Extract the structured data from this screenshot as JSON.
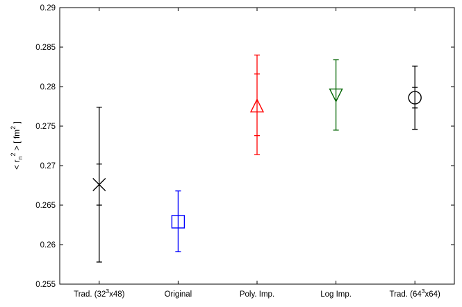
{
  "chart_data": {
    "type": "scatter",
    "title": "",
    "xlabel": "",
    "ylabel": "< r_n^2 >  [ fm^2 ]",
    "ylabel_parts": {
      "open": "< r",
      "sub": "n",
      "sup1": "2",
      "close": " >   [ fm",
      "sup2": "2",
      "end": " ]"
    },
    "ylim": [
      0.255,
      0.29
    ],
    "yticks": [
      "0.255",
      "0.26",
      "0.265",
      "0.27",
      "0.275",
      "0.28",
      "0.285",
      "0.29"
    ],
    "categories": [
      {
        "label": "Trad. (32",
        "sup": "3",
        "tail": "x48)"
      },
      {
        "label": "Original",
        "sup": "",
        "tail": ""
      },
      {
        "label": "Poly. Imp.",
        "sup": "",
        "tail": ""
      },
      {
        "label": "Log Imp.",
        "sup": "",
        "tail": ""
      },
      {
        "label": "Trad. (64",
        "sup": "3",
        "tail": "x64)"
      }
    ],
    "points": [
      {
        "value": 0.2676,
        "inner": [
          0.265,
          0.2702
        ],
        "outer": [
          0.2578,
          0.2774
        ],
        "marker": "x",
        "color": "#000000"
      },
      {
        "value": 0.2629,
        "inner": [
          0.2591,
          0.2668
        ],
        "outer": [
          0.2591,
          0.2668
        ],
        "marker": "square",
        "color": "#0000ff"
      },
      {
        "value": 0.2775,
        "inner": [
          0.2738,
          0.2816
        ],
        "outer": [
          0.2714,
          0.284
        ],
        "marker": "triangle-up",
        "color": "#ff0000"
      },
      {
        "value": 0.279,
        "inner": [
          0.2745,
          0.2834
        ],
        "outer": [
          0.2745,
          0.2834
        ],
        "marker": "triangle-down",
        "color": "#006400"
      },
      {
        "value": 0.2786,
        "inner": [
          0.2773,
          0.2799
        ],
        "outer": [
          0.2746,
          0.2826
        ],
        "marker": "circle",
        "color": "#000000"
      }
    ],
    "grid": false,
    "legend": "none"
  }
}
